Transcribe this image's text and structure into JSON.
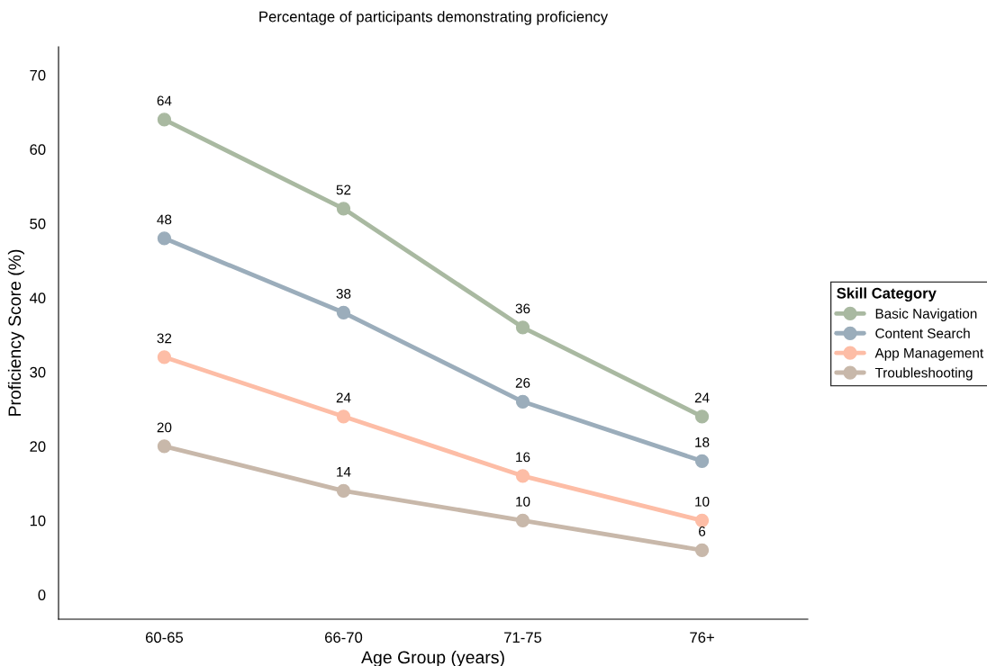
{
  "chart_data": {
    "type": "line",
    "title": "Percentage of participants demonstrating proficiency",
    "xlabel": "Age Group (years)",
    "ylabel": "Proficiency Score (%)",
    "legend_title": "Skill Category",
    "categories": [
      "60-65",
      "66-70",
      "71-75",
      "76+"
    ],
    "series": [
      {
        "name": "Basic Navigation",
        "color": "#a9b9a1",
        "values": [
          64,
          52,
          36,
          24
        ]
      },
      {
        "name": "Content Search",
        "color": "#9badbb",
        "values": [
          48,
          38,
          26,
          18
        ]
      },
      {
        "name": "App Management",
        "color": "#fdbda6",
        "values": [
          32,
          24,
          16,
          10
        ]
      },
      {
        "name": "Troubleshooting",
        "color": "#c8b8aa",
        "values": [
          20,
          14,
          10,
          6
        ]
      }
    ],
    "ylim": [
      -3.3,
      73.8
    ],
    "yticks": [
      0,
      10,
      20,
      30,
      40,
      50,
      60,
      70
    ],
    "data_labels": true,
    "grid": false,
    "legend": "right",
    "marker": "circle",
    "line_style": "solid"
  }
}
